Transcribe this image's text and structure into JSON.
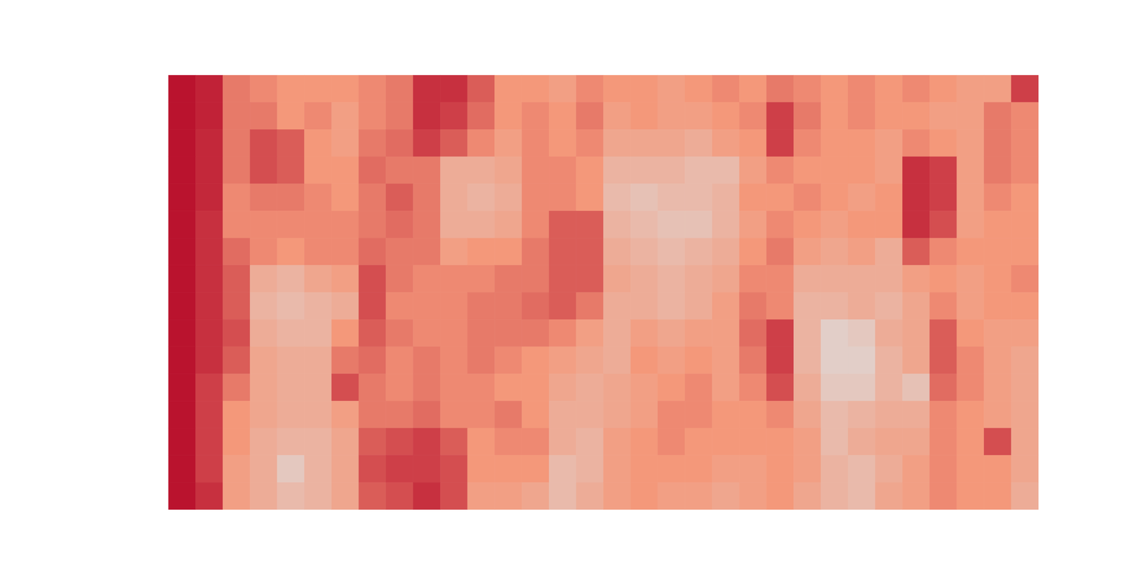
{
  "chart_data": {
    "type": "heatmap",
    "tick_labels": false,
    "zlim": [
      -1,
      1
    ],
    "z": [
      [
        0.95,
        0.9,
        0.6,
        0.55,
        0.5,
        0.5,
        0.5,
        0.55,
        0.6,
        0.85,
        0.85,
        0.7,
        0.5,
        0.5,
        0.45,
        0.55,
        0.5,
        0.5,
        0.45,
        0.5,
        0.55,
        0.5,
        0.6,
        0.55,
        0.5,
        0.55,
        0.5,
        0.55,
        0.5,
        0.45,
        0.45,
        0.8
      ],
      [
        0.95,
        0.9,
        0.6,
        0.6,
        0.5,
        0.55,
        0.45,
        0.55,
        0.6,
        0.85,
        0.8,
        0.65,
        0.5,
        0.55,
        0.5,
        0.6,
        0.45,
        0.5,
        0.45,
        0.45,
        0.5,
        0.55,
        0.8,
        0.6,
        0.5,
        0.55,
        0.5,
        0.5,
        0.45,
        0.45,
        0.6,
        0.55
      ],
      [
        0.95,
        0.88,
        0.6,
        0.75,
        0.7,
        0.5,
        0.45,
        0.6,
        0.65,
        0.8,
        0.7,
        0.55,
        0.45,
        0.55,
        0.5,
        0.55,
        0.4,
        0.4,
        0.4,
        0.35,
        0.45,
        0.5,
        0.8,
        0.55,
        0.5,
        0.5,
        0.45,
        0.55,
        0.5,
        0.45,
        0.6,
        0.55
      ],
      [
        0.95,
        0.88,
        0.6,
        0.75,
        0.7,
        0.5,
        0.5,
        0.65,
        0.6,
        0.6,
        0.35,
        0.35,
        0.4,
        0.55,
        0.55,
        0.5,
        0.3,
        0.3,
        0.3,
        0.25,
        0.25,
        0.45,
        0.55,
        0.5,
        0.5,
        0.5,
        0.45,
        0.85,
        0.8,
        0.45,
        0.6,
        0.55
      ],
      [
        0.95,
        0.88,
        0.55,
        0.6,
        0.6,
        0.55,
        0.5,
        0.6,
        0.7,
        0.6,
        0.35,
        0.3,
        0.35,
        0.55,
        0.55,
        0.5,
        0.25,
        0.2,
        0.25,
        0.25,
        0.3,
        0.5,
        0.5,
        0.55,
        0.5,
        0.45,
        0.5,
        0.85,
        0.8,
        0.45,
        0.55,
        0.5
      ],
      [
        0.95,
        0.85,
        0.55,
        0.55,
        0.55,
        0.55,
        0.55,
        0.6,
        0.65,
        0.6,
        0.35,
        0.35,
        0.4,
        0.55,
        0.7,
        0.7,
        0.3,
        0.25,
        0.2,
        0.2,
        0.3,
        0.45,
        0.55,
        0.5,
        0.45,
        0.5,
        0.5,
        0.85,
        0.75,
        0.45,
        0.5,
        0.5
      ],
      [
        0.95,
        0.85,
        0.65,
        0.55,
        0.5,
        0.55,
        0.55,
        0.65,
        0.6,
        0.6,
        0.45,
        0.5,
        0.5,
        0.6,
        0.7,
        0.7,
        0.35,
        0.3,
        0.25,
        0.3,
        0.35,
        0.5,
        0.6,
        0.45,
        0.4,
        0.45,
        0.35,
        0.7,
        0.55,
        0.5,
        0.5,
        0.5
      ],
      [
        0.95,
        0.85,
        0.7,
        0.35,
        0.3,
        0.4,
        0.45,
        0.75,
        0.6,
        0.55,
        0.55,
        0.55,
        0.6,
        0.6,
        0.7,
        0.7,
        0.4,
        0.35,
        0.3,
        0.35,
        0.4,
        0.55,
        0.55,
        0.35,
        0.35,
        0.35,
        0.35,
        0.45,
        0.5,
        0.45,
        0.5,
        0.55
      ],
      [
        0.95,
        0.85,
        0.7,
        0.3,
        0.25,
        0.3,
        0.35,
        0.75,
        0.55,
        0.55,
        0.55,
        0.6,
        0.6,
        0.65,
        0.7,
        0.6,
        0.35,
        0.35,
        0.3,
        0.35,
        0.45,
        0.6,
        0.55,
        0.3,
        0.3,
        0.35,
        0.3,
        0.4,
        0.55,
        0.45,
        0.5,
        0.5
      ],
      [
        0.95,
        0.85,
        0.75,
        0.35,
        0.3,
        0.3,
        0.5,
        0.7,
        0.6,
        0.55,
        0.55,
        0.6,
        0.6,
        0.6,
        0.55,
        0.45,
        0.35,
        0.45,
        0.4,
        0.45,
        0.45,
        0.65,
        0.8,
        0.3,
        0.1,
        0.15,
        0.35,
        0.4,
        0.7,
        0.5,
        0.45,
        0.45
      ],
      [
        0.95,
        0.85,
        0.7,
        0.4,
        0.35,
        0.35,
        0.6,
        0.65,
        0.55,
        0.6,
        0.55,
        0.6,
        0.55,
        0.5,
        0.45,
        0.4,
        0.35,
        0.5,
        0.45,
        0.5,
        0.45,
        0.6,
        0.8,
        0.3,
        0.1,
        0.1,
        0.3,
        0.4,
        0.7,
        0.55,
        0.45,
        0.4
      ],
      [
        0.95,
        0.8,
        0.6,
        0.4,
        0.35,
        0.35,
        0.75,
        0.6,
        0.55,
        0.6,
        0.55,
        0.55,
        0.5,
        0.5,
        0.4,
        0.35,
        0.4,
        0.45,
        0.5,
        0.55,
        0.45,
        0.55,
        0.75,
        0.35,
        0.15,
        0.15,
        0.3,
        0.2,
        0.65,
        0.55,
        0.45,
        0.4
      ],
      [
        0.95,
        0.8,
        0.5,
        0.4,
        0.35,
        0.35,
        0.45,
        0.6,
        0.6,
        0.65,
        0.55,
        0.55,
        0.6,
        0.5,
        0.35,
        0.35,
        0.4,
        0.45,
        0.55,
        0.55,
        0.5,
        0.5,
        0.55,
        0.4,
        0.25,
        0.3,
        0.35,
        0.35,
        0.55,
        0.5,
        0.45,
        0.4
      ],
      [
        0.95,
        0.8,
        0.5,
        0.35,
        0.3,
        0.3,
        0.4,
        0.7,
        0.75,
        0.8,
        0.7,
        0.5,
        0.55,
        0.55,
        0.35,
        0.3,
        0.45,
        0.5,
        0.55,
        0.5,
        0.5,
        0.5,
        0.5,
        0.45,
        0.25,
        0.35,
        0.4,
        0.4,
        0.55,
        0.5,
        0.75,
        0.4
      ],
      [
        0.95,
        0.8,
        0.45,
        0.35,
        0.15,
        0.3,
        0.4,
        0.75,
        0.8,
        0.8,
        0.75,
        0.5,
        0.5,
        0.5,
        0.25,
        0.3,
        0.45,
        0.5,
        0.5,
        0.5,
        0.45,
        0.45,
        0.5,
        0.45,
        0.3,
        0.25,
        0.35,
        0.45,
        0.55,
        0.5,
        0.5,
        0.4
      ],
      [
        0.95,
        0.85,
        0.45,
        0.35,
        0.25,
        0.3,
        0.4,
        0.7,
        0.75,
        0.85,
        0.75,
        0.45,
        0.45,
        0.4,
        0.25,
        0.35,
        0.45,
        0.5,
        0.45,
        0.45,
        0.4,
        0.45,
        0.5,
        0.4,
        0.3,
        0.25,
        0.4,
        0.45,
        0.55,
        0.5,
        0.5,
        0.35
      ]
    ]
  }
}
